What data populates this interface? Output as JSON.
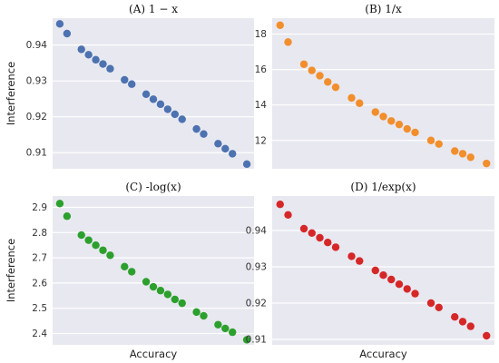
{
  "chart_data": [
    {
      "type": "scatter",
      "title": "(A) 1 − x",
      "xlabel": "",
      "ylabel": "Interference",
      "grid": true,
      "ylim": [
        0.9055,
        0.9475
      ],
      "yticks": [
        0.91,
        0.92,
        0.93,
        0.94
      ],
      "ytick_labels": [
        "0.91",
        "0.92",
        "0.93",
        "0.94"
      ],
      "series": [
        {
          "color": "#4c72b0",
          "x": [
            1,
            2,
            4,
            5,
            6,
            7,
            8,
            10,
            11,
            13,
            14,
            15,
            16,
            17,
            18,
            20,
            21,
            23,
            24,
            25,
            27
          ],
          "y": [
            0.9459,
            0.9432,
            0.9388,
            0.9373,
            0.9359,
            0.9347,
            0.9334,
            0.9303,
            0.9291,
            0.9263,
            0.9249,
            0.9235,
            0.9221,
            0.9207,
            0.9193,
            0.9166,
            0.9152,
            0.9125,
            0.9111,
            0.9097,
            0.9068
          ]
        }
      ]
    },
    {
      "type": "scatter",
      "title": "(B)  1/x",
      "xlabel": "",
      "ylabel": "",
      "grid": true,
      "ylim": [
        10.4,
        18.9
      ],
      "yticks": [
        12,
        14,
        16,
        18
      ],
      "ytick_labels": [
        "12",
        "14",
        "16",
        "18"
      ],
      "series": [
        {
          "color": "#f28e2b",
          "x": [
            1,
            2,
            4,
            5,
            6,
            7,
            8,
            10,
            11,
            13,
            14,
            15,
            16,
            17,
            18,
            20,
            21,
            23,
            24,
            25,
            27
          ],
          "y": [
            18.5,
            17.55,
            16.3,
            15.95,
            15.65,
            15.3,
            15.0,
            14.4,
            14.1,
            13.6,
            13.35,
            13.1,
            12.9,
            12.65,
            12.45,
            12.0,
            11.8,
            11.4,
            11.25,
            11.05,
            10.7
          ]
        }
      ]
    },
    {
      "type": "scatter",
      "title": "(C)  -log(x)",
      "xlabel": "Accuracy",
      "ylabel": "Interference",
      "grid": true,
      "ylim": [
        2.355,
        2.945
      ],
      "yticks": [
        2.4,
        2.5,
        2.6,
        2.7,
        2.8,
        2.9
      ],
      "ytick_labels": [
        "2.4",
        "2.5",
        "2.6",
        "2.7",
        "2.8",
        "2.9"
      ],
      "series": [
        {
          "color": "#2ca02c",
          "x": [
            1,
            2,
            4,
            5,
            6,
            7,
            8,
            10,
            11,
            13,
            14,
            15,
            16,
            17,
            18,
            20,
            21,
            23,
            24,
            25,
            27
          ],
          "y": [
            2.915,
            2.865,
            2.79,
            2.77,
            2.75,
            2.73,
            2.71,
            2.665,
            2.645,
            2.605,
            2.585,
            2.57,
            2.555,
            2.535,
            2.52,
            2.485,
            2.47,
            2.435,
            2.42,
            2.405,
            2.375
          ]
        }
      ]
    },
    {
      "type": "scatter",
      "title": "(D)  1/exp(x)",
      "xlabel": "Accuracy",
      "ylabel": "",
      "grid": true,
      "ylim": [
        0.9085,
        0.9495
      ],
      "yticks": [
        0.91,
        0.92,
        0.93,
        0.94
      ],
      "ytick_labels": [
        "0.91",
        "0.92",
        "0.93",
        "0.94"
      ],
      "series": [
        {
          "color": "#d62728",
          "x": [
            1,
            2,
            4,
            5,
            6,
            7,
            8,
            10,
            11,
            13,
            14,
            15,
            16,
            17,
            18,
            20,
            21,
            23,
            24,
            25,
            27
          ],
          "y": [
            0.9472,
            0.9443,
            0.9405,
            0.9393,
            0.938,
            0.9367,
            0.9354,
            0.9329,
            0.9316,
            0.929,
            0.9277,
            0.9265,
            0.9252,
            0.9239,
            0.9226,
            0.92,
            0.9188,
            0.9162,
            0.9149,
            0.9136,
            0.911
          ]
        }
      ]
    }
  ]
}
